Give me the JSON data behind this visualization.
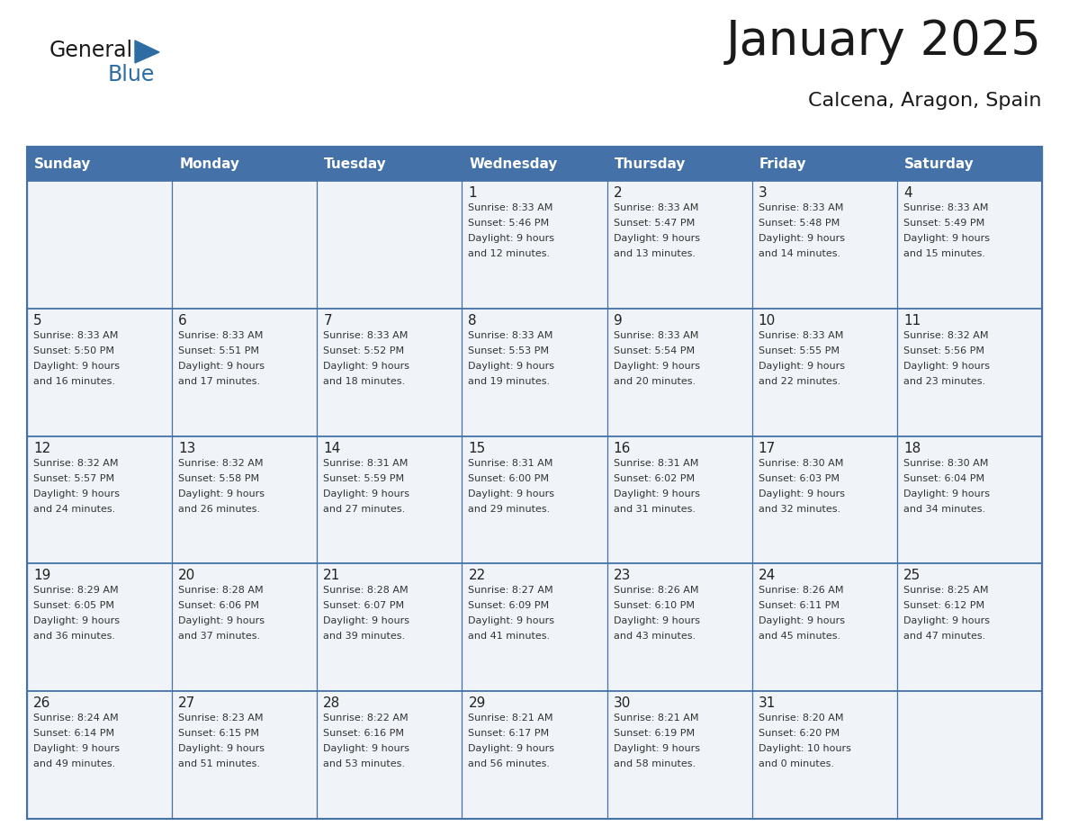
{
  "title": "January 2025",
  "subtitle": "Calcena, Aragon, Spain",
  "header_bg": "#4472a8",
  "header_text": "#ffffff",
  "cell_bg": "#f0f4f8",
  "grid_line_color": "#4472a8",
  "text_color": "#333333",
  "day_names": [
    "Sunday",
    "Monday",
    "Tuesday",
    "Wednesday",
    "Thursday",
    "Friday",
    "Saturday"
  ],
  "weeks": [
    [
      {
        "day": "",
        "lines": []
      },
      {
        "day": "",
        "lines": []
      },
      {
        "day": "",
        "lines": []
      },
      {
        "day": "1",
        "lines": [
          "Sunrise: 8:33 AM",
          "Sunset: 5:46 PM",
          "Daylight: 9 hours",
          "and 12 minutes."
        ]
      },
      {
        "day": "2",
        "lines": [
          "Sunrise: 8:33 AM",
          "Sunset: 5:47 PM",
          "Daylight: 9 hours",
          "and 13 minutes."
        ]
      },
      {
        "day": "3",
        "lines": [
          "Sunrise: 8:33 AM",
          "Sunset: 5:48 PM",
          "Daylight: 9 hours",
          "and 14 minutes."
        ]
      },
      {
        "day": "4",
        "lines": [
          "Sunrise: 8:33 AM",
          "Sunset: 5:49 PM",
          "Daylight: 9 hours",
          "and 15 minutes."
        ]
      }
    ],
    [
      {
        "day": "5",
        "lines": [
          "Sunrise: 8:33 AM",
          "Sunset: 5:50 PM",
          "Daylight: 9 hours",
          "and 16 minutes."
        ]
      },
      {
        "day": "6",
        "lines": [
          "Sunrise: 8:33 AM",
          "Sunset: 5:51 PM",
          "Daylight: 9 hours",
          "and 17 minutes."
        ]
      },
      {
        "day": "7",
        "lines": [
          "Sunrise: 8:33 AM",
          "Sunset: 5:52 PM",
          "Daylight: 9 hours",
          "and 18 minutes."
        ]
      },
      {
        "day": "8",
        "lines": [
          "Sunrise: 8:33 AM",
          "Sunset: 5:53 PM",
          "Daylight: 9 hours",
          "and 19 minutes."
        ]
      },
      {
        "day": "9",
        "lines": [
          "Sunrise: 8:33 AM",
          "Sunset: 5:54 PM",
          "Daylight: 9 hours",
          "and 20 minutes."
        ]
      },
      {
        "day": "10",
        "lines": [
          "Sunrise: 8:33 AM",
          "Sunset: 5:55 PM",
          "Daylight: 9 hours",
          "and 22 minutes."
        ]
      },
      {
        "day": "11",
        "lines": [
          "Sunrise: 8:32 AM",
          "Sunset: 5:56 PM",
          "Daylight: 9 hours",
          "and 23 minutes."
        ]
      }
    ],
    [
      {
        "day": "12",
        "lines": [
          "Sunrise: 8:32 AM",
          "Sunset: 5:57 PM",
          "Daylight: 9 hours",
          "and 24 minutes."
        ]
      },
      {
        "day": "13",
        "lines": [
          "Sunrise: 8:32 AM",
          "Sunset: 5:58 PM",
          "Daylight: 9 hours",
          "and 26 minutes."
        ]
      },
      {
        "day": "14",
        "lines": [
          "Sunrise: 8:31 AM",
          "Sunset: 5:59 PM",
          "Daylight: 9 hours",
          "and 27 minutes."
        ]
      },
      {
        "day": "15",
        "lines": [
          "Sunrise: 8:31 AM",
          "Sunset: 6:00 PM",
          "Daylight: 9 hours",
          "and 29 minutes."
        ]
      },
      {
        "day": "16",
        "lines": [
          "Sunrise: 8:31 AM",
          "Sunset: 6:02 PM",
          "Daylight: 9 hours",
          "and 31 minutes."
        ]
      },
      {
        "day": "17",
        "lines": [
          "Sunrise: 8:30 AM",
          "Sunset: 6:03 PM",
          "Daylight: 9 hours",
          "and 32 minutes."
        ]
      },
      {
        "day": "18",
        "lines": [
          "Sunrise: 8:30 AM",
          "Sunset: 6:04 PM",
          "Daylight: 9 hours",
          "and 34 minutes."
        ]
      }
    ],
    [
      {
        "day": "19",
        "lines": [
          "Sunrise: 8:29 AM",
          "Sunset: 6:05 PM",
          "Daylight: 9 hours",
          "and 36 minutes."
        ]
      },
      {
        "day": "20",
        "lines": [
          "Sunrise: 8:28 AM",
          "Sunset: 6:06 PM",
          "Daylight: 9 hours",
          "and 37 minutes."
        ]
      },
      {
        "day": "21",
        "lines": [
          "Sunrise: 8:28 AM",
          "Sunset: 6:07 PM",
          "Daylight: 9 hours",
          "and 39 minutes."
        ]
      },
      {
        "day": "22",
        "lines": [
          "Sunrise: 8:27 AM",
          "Sunset: 6:09 PM",
          "Daylight: 9 hours",
          "and 41 minutes."
        ]
      },
      {
        "day": "23",
        "lines": [
          "Sunrise: 8:26 AM",
          "Sunset: 6:10 PM",
          "Daylight: 9 hours",
          "and 43 minutes."
        ]
      },
      {
        "day": "24",
        "lines": [
          "Sunrise: 8:26 AM",
          "Sunset: 6:11 PM",
          "Daylight: 9 hours",
          "and 45 minutes."
        ]
      },
      {
        "day": "25",
        "lines": [
          "Sunrise: 8:25 AM",
          "Sunset: 6:12 PM",
          "Daylight: 9 hours",
          "and 47 minutes."
        ]
      }
    ],
    [
      {
        "day": "26",
        "lines": [
          "Sunrise: 8:24 AM",
          "Sunset: 6:14 PM",
          "Daylight: 9 hours",
          "and 49 minutes."
        ]
      },
      {
        "day": "27",
        "lines": [
          "Sunrise: 8:23 AM",
          "Sunset: 6:15 PM",
          "Daylight: 9 hours",
          "and 51 minutes."
        ]
      },
      {
        "day": "28",
        "lines": [
          "Sunrise: 8:22 AM",
          "Sunset: 6:16 PM",
          "Daylight: 9 hours",
          "and 53 minutes."
        ]
      },
      {
        "day": "29",
        "lines": [
          "Sunrise: 8:21 AM",
          "Sunset: 6:17 PM",
          "Daylight: 9 hours",
          "and 56 minutes."
        ]
      },
      {
        "day": "30",
        "lines": [
          "Sunrise: 8:21 AM",
          "Sunset: 6:19 PM",
          "Daylight: 9 hours",
          "and 58 minutes."
        ]
      },
      {
        "day": "31",
        "lines": [
          "Sunrise: 8:20 AM",
          "Sunset: 6:20 PM",
          "Daylight: 10 hours",
          "and 0 minutes."
        ]
      },
      {
        "day": "",
        "lines": []
      }
    ]
  ]
}
